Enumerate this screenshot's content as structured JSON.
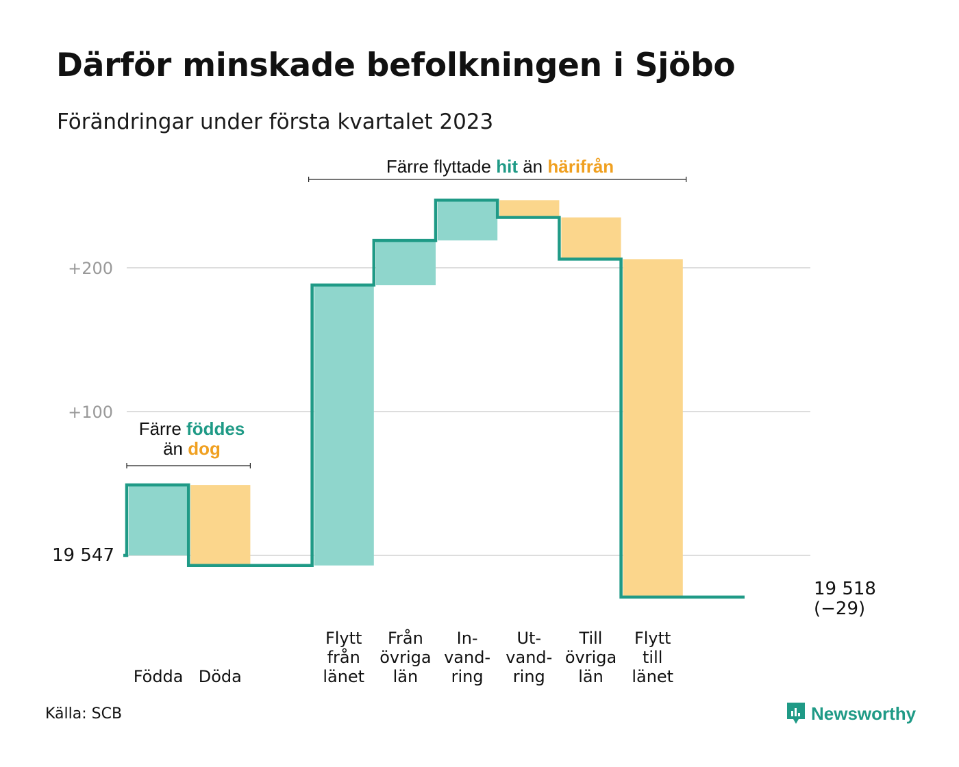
{
  "title": "Därför minskade befolkningen i Sjöbo",
  "subtitle": "Förändringar under första kvartalet 2023",
  "source": "Källa: SCB",
  "logo": {
    "text": "Newsworthy"
  },
  "colors": {
    "inflow": "#8fd6cc",
    "outflow": "#fbd68c",
    "line": "#1f9a86",
    "inflow_text": "#1f9a86",
    "outflow_text": "#f0a020",
    "grid": "#dddddd",
    "tick": "#999999"
  },
  "chart_data": {
    "type": "waterfall",
    "start_value": 19547,
    "start_label": "19 547",
    "end_label": "19 518",
    "end_change_label": "(−29)",
    "y_ticks": [
      {
        "value": 100,
        "label": "+100"
      },
      {
        "value": 200,
        "label": "+200"
      }
    ],
    "ylim": [
      -40,
      255
    ],
    "steps": [
      {
        "label_lines": [
          "Födda"
        ],
        "change": 49,
        "kind": "inflow"
      },
      {
        "label_lines": [
          "Döda"
        ],
        "change": -56,
        "kind": "outflow"
      },
      {
        "label_lines": [],
        "change": 0,
        "kind": "gap"
      },
      {
        "label_lines": [
          "Flytt",
          "från",
          "länet"
        ],
        "change": 195,
        "kind": "inflow"
      },
      {
        "label_lines": [
          "Från",
          "övriga",
          "län"
        ],
        "change": 31,
        "kind": "inflow"
      },
      {
        "label_lines": [
          "In-",
          "vand-",
          "ring"
        ],
        "change": 28,
        "kind": "inflow"
      },
      {
        "label_lines": [
          "Ut-",
          "vand-",
          "ring"
        ],
        "change": -12,
        "kind": "outflow"
      },
      {
        "label_lines": [
          "Till",
          "övriga",
          "län"
        ],
        "change": -29,
        "kind": "outflow"
      },
      {
        "label_lines": [
          "Flytt",
          "till",
          "länet"
        ],
        "change": -235,
        "kind": "outflow"
      },
      {
        "label_lines": [],
        "change": 0,
        "kind": "gap"
      }
    ],
    "annotations": [
      {
        "parts": [
          {
            "text": "Färre flyttade",
            "style": "plain"
          },
          {
            "text": "hit",
            "style": "inflow"
          },
          {
            "text": "än",
            "style": "plain"
          },
          {
            "text": "härifrån",
            "style": "outflow"
          }
        ]
      },
      {
        "lines": [
          [
            {
              "text": "Färre",
              "style": "plain"
            },
            {
              "text": "föddes",
              "style": "inflow"
            }
          ],
          [
            {
              "text": "än",
              "style": "plain"
            },
            {
              "text": "dog",
              "style": "outflow"
            }
          ]
        ]
      }
    ]
  }
}
